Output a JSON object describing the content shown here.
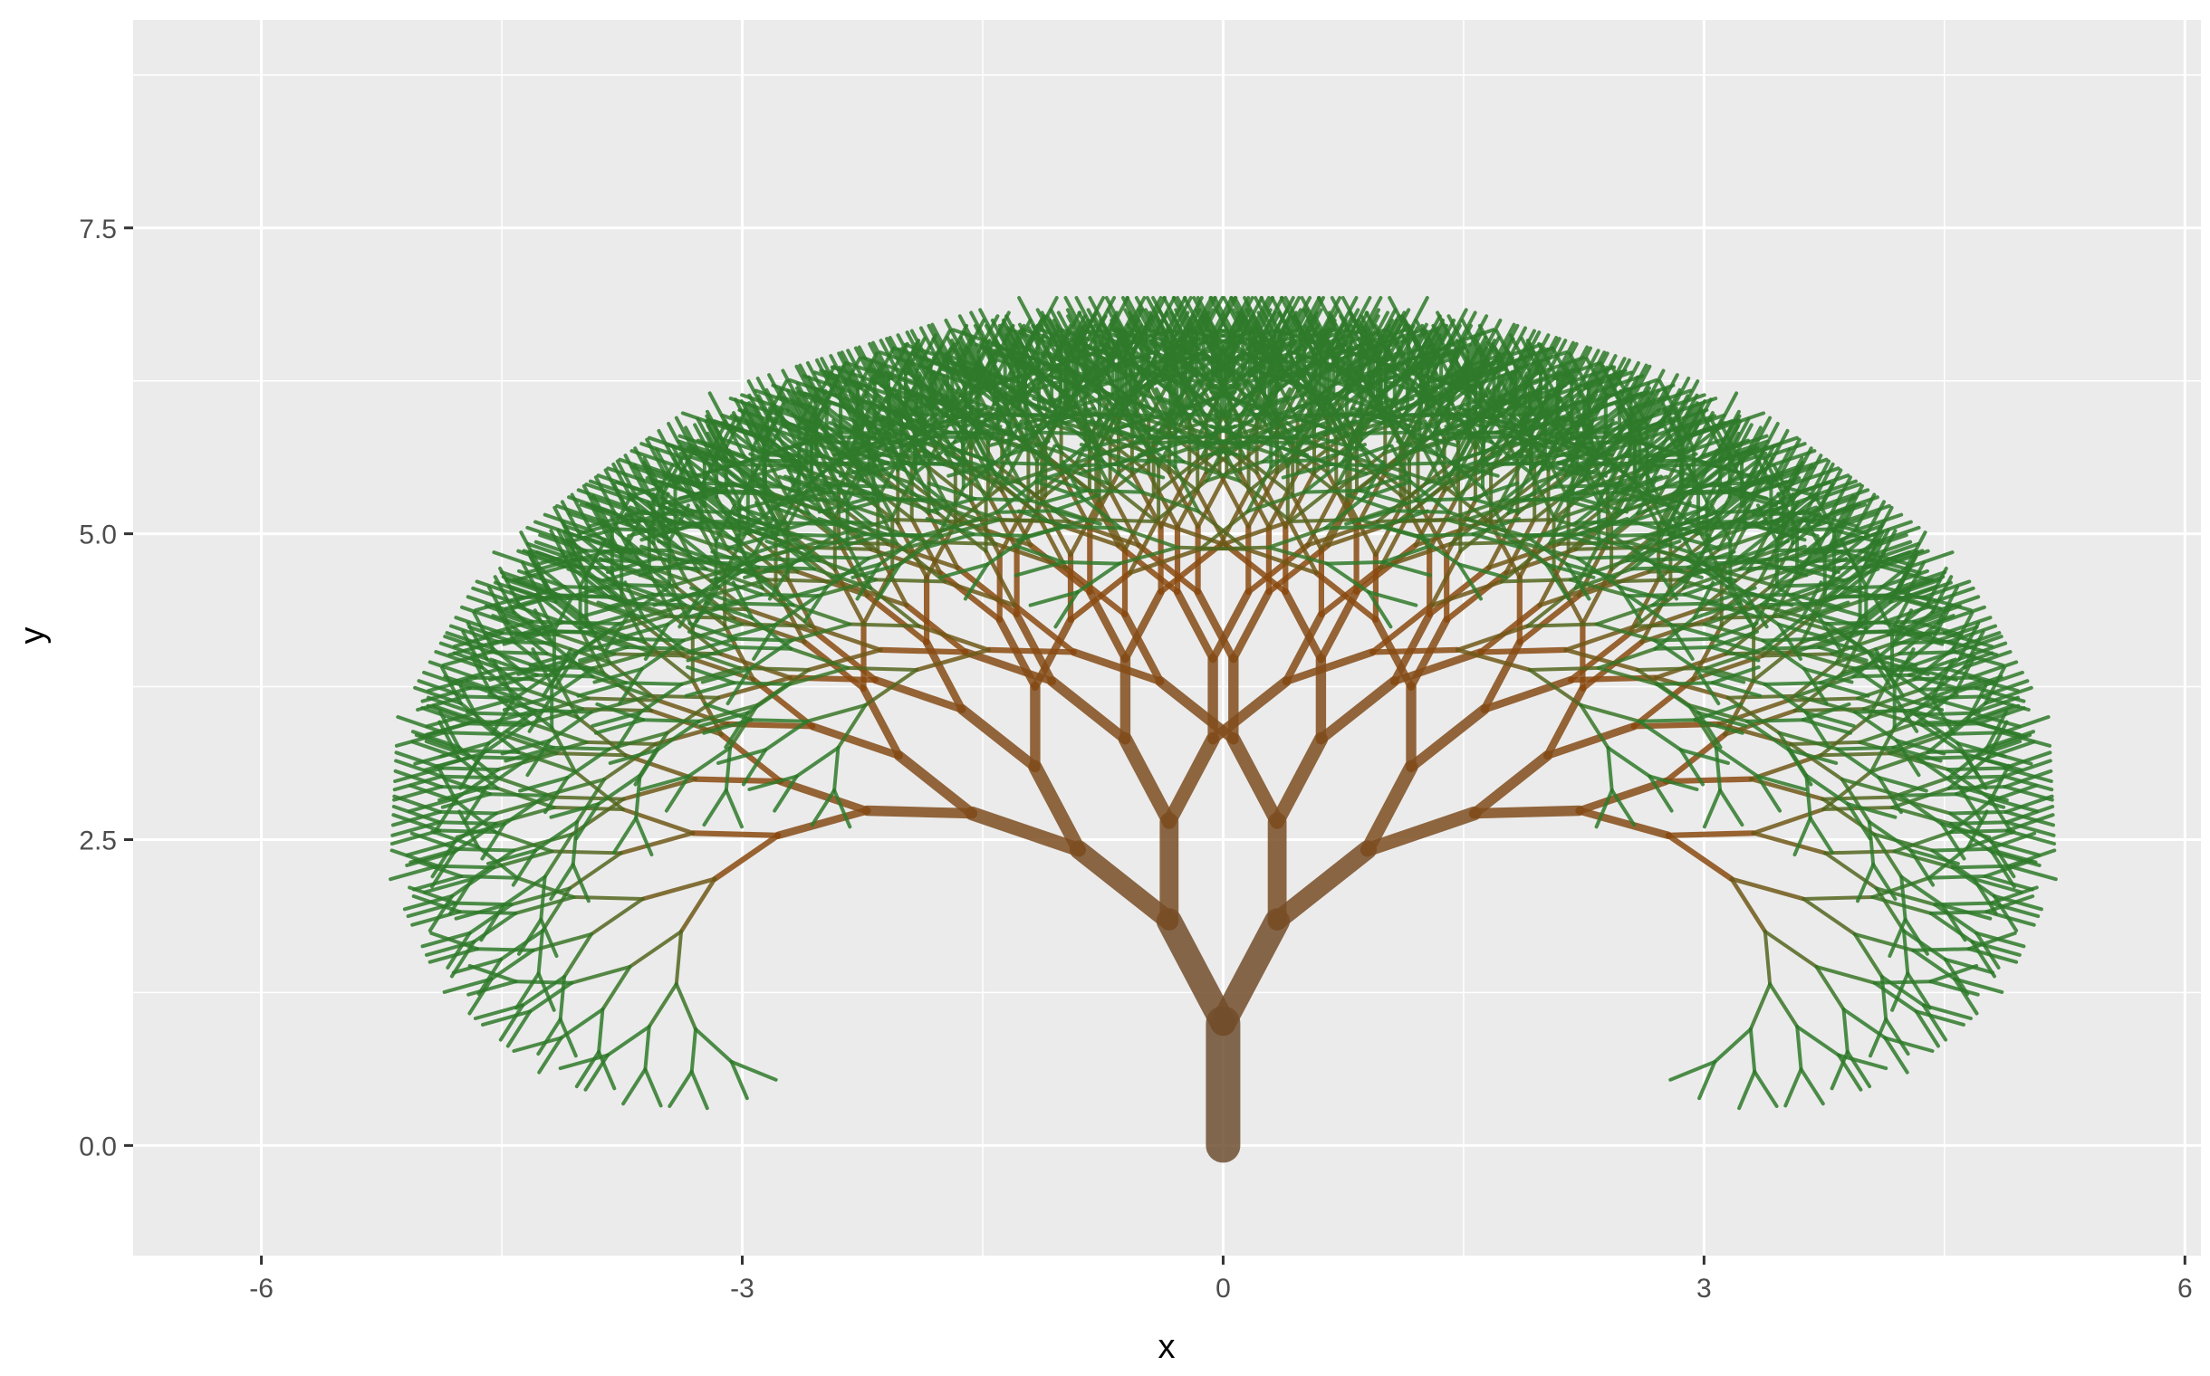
{
  "chart_data": {
    "type": "line",
    "title": "",
    "xlabel": "x",
    "ylabel": "y",
    "xlim": [
      -6.8,
      6.1
    ],
    "ylim": [
      -0.9,
      9.2
    ],
    "x_ticks": [
      {
        "value": -6,
        "label": "-6"
      },
      {
        "value": -3,
        "label": "-3"
      },
      {
        "value": 0,
        "label": "0"
      },
      {
        "value": 3,
        "label": "3"
      },
      {
        "value": 6,
        "label": "6"
      }
    ],
    "y_ticks": [
      {
        "value": 0,
        "label": "0.0"
      },
      {
        "value": 2.5,
        "label": "2.5"
      },
      {
        "value": 5,
        "label": "5.0"
      },
      {
        "value": 7.5,
        "label": "7.5"
      }
    ],
    "minor_x": [
      -4.5,
      -1.5,
      1.5,
      4.5
    ],
    "minor_y": [
      1.25,
      3.75,
      6.25,
      8.75
    ],
    "grid": true,
    "panel_background": "#EBEBEB",
    "grid_color": "#FFFFFF",
    "series": [
      {
        "description": "fractal tree branch segments; depth 0 is the trunk from (0,0) to (0,1); each segment splits into two children rotated by +/- 22 degrees",
        "trunk": {
          "x0": 0,
          "y0": 0,
          "x1": 0,
          "y1": 1
        },
        "branch_angle_deg": 22,
        "length_scale": 0.9,
        "max_depth": 11,
        "trunk_color": "#6F4F32",
        "mid_color": "#8A4A10",
        "leaf_color": "#2F7A2A"
      }
    ]
  }
}
